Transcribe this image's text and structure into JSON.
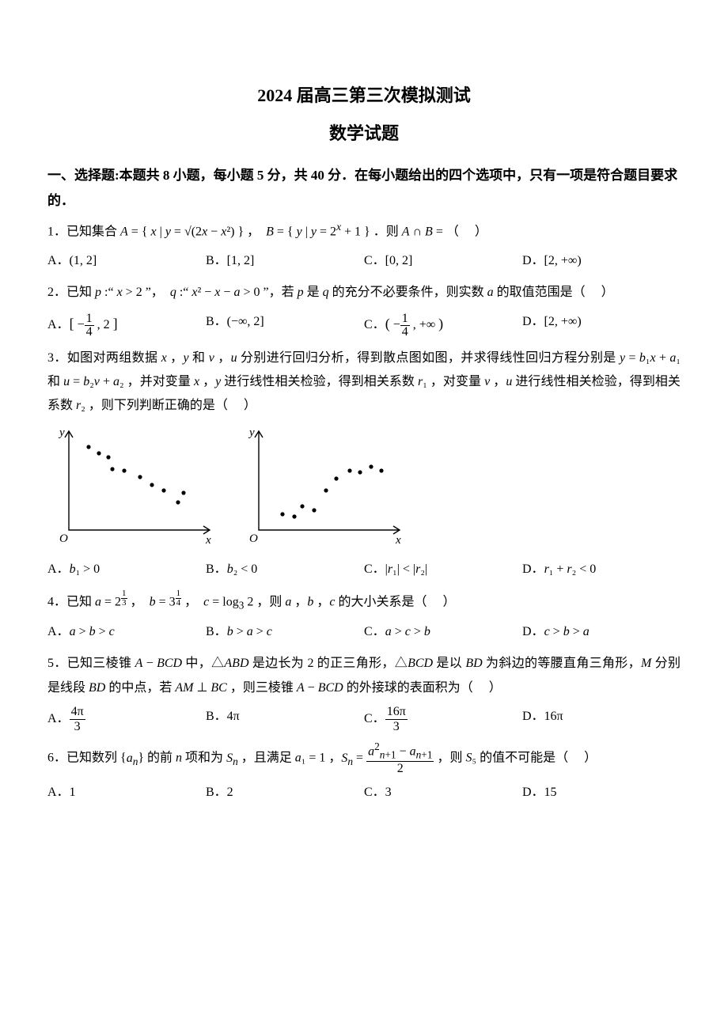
{
  "title": "2024 届高三第三次模拟测试",
  "subtitle": "数学试题",
  "section1": "一、选择题:本题共 8 小题，每小题 5 分，共 40 分．在每小题给出的四个选项中，只有一项是符合题目要求的．",
  "q1": {
    "text": "1．已知集合 A = { x | y = √(2x − x²) } ，  B = { y | y = 2ˣ + 1 } ．则 A ∩ B = （   ）",
    "A": "A．(1, 2]",
    "B": "B．[1, 2]",
    "C": "C．[0, 2]",
    "D": "D．[2, +∞)"
  },
  "q2": {
    "text": "2．已知 p :\" x > 2 \"，  q :\" x² − x − a > 0 \"，若 p 是 q 的充分不必要条件，则实数 a 的取值范围是（   ）",
    "A": "A．[ −1/4 , 2 ]",
    "B": "B．(−∞, 2]",
    "C": "C．( −1/4 , +∞ )",
    "D": "D．[2, +∞)"
  },
  "q3": {
    "text1": "3．如图对两组数据 x ，y 和 v ，u 分别进行回归分析，得到散点图如图，并求得线性回归方程分别是 y = b₁x + a₁ 和 u = b₂v + a₂ ，并对变量 x ，y 进行线性相关检验，得到相关系数 r₁ ，对变量 v ，u 进行线性相关检验，得到相关系数 r₂ ，则下列判断正确的是（   ）",
    "A": "A．b₁ > 0",
    "B": "B．b₂ < 0",
    "C": "C．|r₁| < |r₂|",
    "D": "D．r₁ + r₂ < 0",
    "chart1": {
      "points": [
        [
          25,
          30
        ],
        [
          38,
          38
        ],
        [
          50,
          43
        ],
        [
          55,
          58
        ],
        [
          70,
          60
        ],
        [
          90,
          68
        ],
        [
          105,
          78
        ],
        [
          120,
          85
        ],
        [
          138,
          100
        ],
        [
          145,
          88
        ]
      ],
      "ylabel": "y",
      "xlabel": "x",
      "olabel": "O"
    },
    "chart2": {
      "points": [
        [
          30,
          115
        ],
        [
          45,
          118
        ],
        [
          55,
          105
        ],
        [
          70,
          110
        ],
        [
          85,
          85
        ],
        [
          98,
          70
        ],
        [
          115,
          60
        ],
        [
          128,
          62
        ],
        [
          142,
          55
        ],
        [
          155,
          60
        ]
      ],
      "ylabel": "y",
      "xlabel": "x",
      "olabel": "O"
    }
  },
  "q4": {
    "text": "4．已知 a = 2^(1/3) ，  b = 3^(1/4) ，  c = log₃ 2 ，则 a ，b ，c 的大小关系是（   ）",
    "A": "A．a > b > c",
    "B": "B．b > a > c",
    "C": "C．a > c > b",
    "D": "D．c > b > a"
  },
  "q5": {
    "text": "5．已知三棱锥 A − BCD 中，△ABD 是边长为 2 的正三角形，△BCD 是以 BD 为斜边的等腰直角三角形，M 分别是线段 BD 的中点，若 AM ⊥ BC ，则三棱锥 A − BCD 的外接球的表面积为（   ）",
    "A": "A．4π / 3",
    "B": "B．4π",
    "C": "C．16π / 3",
    "D": "D．16π"
  },
  "q6": {
    "text": "6．已知数列 {aₙ} 的前 n 项和为 Sₙ ，且满足 a₁ = 1 ，Sₙ = (a²ₙ₊₁ − aₙ₊₁) / 2 ，则 S₅ 的值不可能是（   ）",
    "A": "A．1",
    "B": "B．2",
    "C": "C．3",
    "D": "D．15"
  }
}
